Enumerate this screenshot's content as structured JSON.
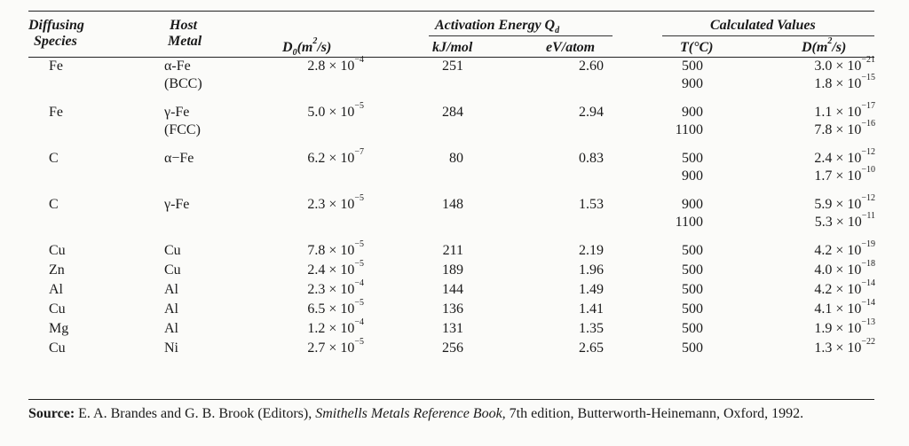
{
  "table": {
    "headers": {
      "species": [
        "Diffusing",
        "Species"
      ],
      "host": [
        "Host",
        "Metal"
      ],
      "d0": {
        "base": "D",
        "sub": "0",
        "unit_open": "(m",
        "unit_sup": "2",
        "unit_close": "/s)"
      },
      "activation_group": {
        "text": "Activation Energy Q",
        "sub": "d"
      },
      "kj": "kJ/mol",
      "ev": "eV/atom",
      "calc_group": "Calculated Values",
      "temp": "T(°C)",
      "d": {
        "base": "D(m",
        "sup": "2",
        "close": "/s)"
      }
    },
    "rows": [
      {
        "species": "Fe",
        "host": [
          "α-Fe",
          "(BCC)"
        ],
        "d0": {
          "m": "2.8",
          "e": "−4"
        },
        "kj": "251",
        "ev": "2.60",
        "calc": [
          {
            "t": "500",
            "m": "3.0",
            "e": "−21"
          },
          {
            "t": "900",
            "m": "1.8",
            "e": "−15"
          }
        ]
      },
      {
        "species": "Fe",
        "host": [
          "γ-Fe",
          "(FCC)"
        ],
        "d0": {
          "m": "5.0",
          "e": "−5"
        },
        "kj": "284",
        "ev": "2.94",
        "calc": [
          {
            "t": "900",
            "m": "1.1",
            "e": "−17"
          },
          {
            "t": "1100",
            "m": "7.8",
            "e": "−16"
          }
        ]
      },
      {
        "species": "C",
        "host": [
          "α−Fe"
        ],
        "d0": {
          "m": "6.2",
          "e": "−7"
        },
        "kj": "80",
        "ev": "0.83",
        "calc": [
          {
            "t": "500",
            "m": "2.4",
            "e": "−12"
          },
          {
            "t": "900",
            "m": "1.7",
            "e": "−10"
          }
        ]
      },
      {
        "species": "C",
        "host": [
          "γ-Fe"
        ],
        "d0": {
          "m": "2.3",
          "e": "−5"
        },
        "kj": "148",
        "ev": "1.53",
        "calc": [
          {
            "t": "900",
            "m": "5.9",
            "e": "−12"
          },
          {
            "t": "1100",
            "m": "5.3",
            "e": "−11"
          }
        ]
      },
      {
        "species": "Cu",
        "host": [
          "Cu"
        ],
        "d0": {
          "m": "7.8",
          "e": "−5"
        },
        "kj": "211",
        "ev": "2.19",
        "calc": [
          {
            "t": "500",
            "m": "4.2",
            "e": "−19"
          }
        ]
      },
      {
        "species": "Zn",
        "host": [
          "Cu"
        ],
        "d0": {
          "m": "2.4",
          "e": "−5"
        },
        "kj": "189",
        "ev": "1.96",
        "calc": [
          {
            "t": "500",
            "m": "4.0",
            "e": "−18"
          }
        ]
      },
      {
        "species": "Al",
        "host": [
          "Al"
        ],
        "d0": {
          "m": "2.3",
          "e": "−4"
        },
        "kj": "144",
        "ev": "1.49",
        "calc": [
          {
            "t": "500",
            "m": "4.2",
            "e": "−14"
          }
        ]
      },
      {
        "species": "Cu",
        "host": [
          "Al"
        ],
        "d0": {
          "m": "6.5",
          "e": "−5"
        },
        "kj": "136",
        "ev": "1.41",
        "calc": [
          {
            "t": "500",
            "m": "4.1",
            "e": "−14"
          }
        ]
      },
      {
        "species": "Mg",
        "host": [
          "Al"
        ],
        "d0": {
          "m": "1.2",
          "e": "−4"
        },
        "kj": "131",
        "ev": "1.35",
        "calc": [
          {
            "t": "500",
            "m": "1.9",
            "e": "−13"
          }
        ]
      },
      {
        "species": "Cu",
        "host": [
          "Ni"
        ],
        "d0": {
          "m": "2.7",
          "e": "−5"
        },
        "kj": "256",
        "ev": "2.65",
        "calc": [
          {
            "t": "500",
            "m": "1.3",
            "e": "−22"
          }
        ]
      }
    ],
    "times": "× 10"
  },
  "source": {
    "label": "Source:",
    "pre": " E. A. Brandes and G. B. Brook (Editors), ",
    "title": "Smithells Metals Reference Book,",
    "post": " 7th edition, Butterworth-Heinemann, Oxford, 1992."
  }
}
